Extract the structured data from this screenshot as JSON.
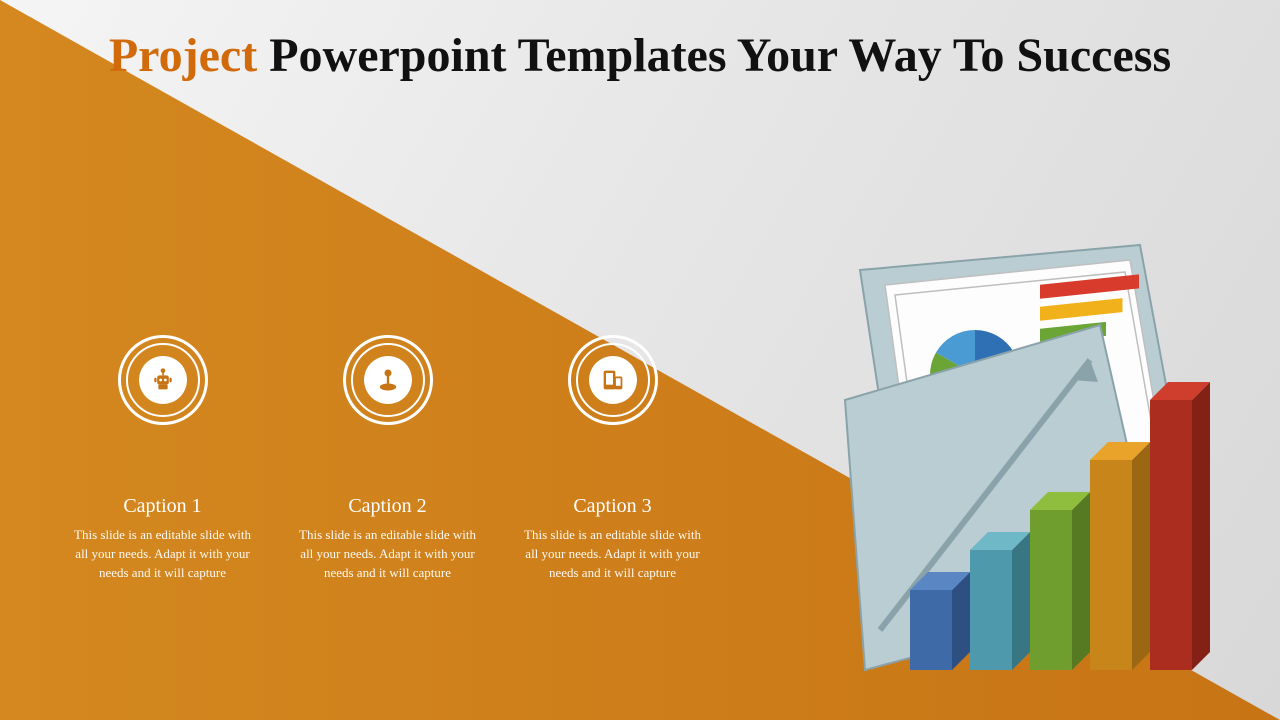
{
  "title": {
    "accent": "Project",
    "rest": " Powerpoint Templates Your Way To Success",
    "accent_color": "#d06a0a",
    "rest_color": "#111111",
    "fontsize": 48
  },
  "background": {
    "triangle_gradient_start": "#d4881f",
    "triangle_gradient_end": "#c77415",
    "bg_light_start": "#f5f5f5",
    "bg_light_end": "#d8d8d8"
  },
  "captions": [
    {
      "icon": "robot-icon",
      "heading": "Caption 1",
      "body": "This slide is an editable slide with all your needs. Adapt it with your needs and it will capture"
    },
    {
      "icon": "joystick-icon",
      "heading": "Caption 2",
      "body": "This slide is an editable slide with all your needs. Adapt it with your needs and it will capture"
    },
    {
      "icon": "devices-icon",
      "heading": "Caption 3",
      "body": "This slide is an editable slide with all your needs. Adapt it with your needs and it will capture"
    }
  ],
  "caption_style": {
    "ring_color": "#ffffff",
    "text_color": "#ffffff",
    "heading_fontsize": 20,
    "body_fontsize": 13
  },
  "folder_graphic": {
    "type": "infographic",
    "folder_fill": "#b9cdd2",
    "folder_edge": "#8aa3aa",
    "paper_fill": "#fdfdfd",
    "paper_edge": "#bfbfbf",
    "pie": {
      "slices": [
        {
          "color": "#2f6fb3",
          "angle": 60
        },
        {
          "color": "#d83a2b",
          "angle": 110
        },
        {
          "color": "#f0b11a",
          "angle": 60
        },
        {
          "color": "#6aa535",
          "angle": 70
        },
        {
          "color": "#4a9bd4",
          "angle": 60
        }
      ]
    },
    "h_bars": {
      "colors": [
        "#d83a2b",
        "#f0b11a",
        "#6aa535",
        "#2f6fb3"
      ],
      "widths": [
        180,
        150,
        120,
        90
      ]
    },
    "bars3d": {
      "colors_top": [
        "#5b86c4",
        "#6fb8c8",
        "#8fbe3f",
        "#e9a32a",
        "#cf3d2d"
      ],
      "colors_front": [
        "#3f6aa8",
        "#4e9aac",
        "#6f9e2f",
        "#c8861a",
        "#ab2d20"
      ],
      "colors_side": [
        "#2d4f82",
        "#387683",
        "#557a22",
        "#9b6712",
        "#842016"
      ],
      "heights": [
        80,
        120,
        160,
        210,
        270
      ]
    },
    "arrow_color": "#8aa3aa"
  }
}
